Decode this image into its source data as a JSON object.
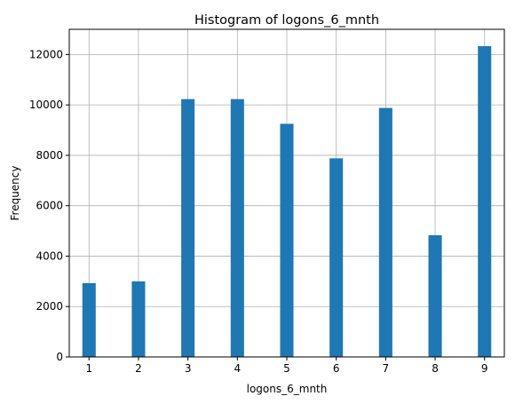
{
  "chart_data": {
    "type": "bar",
    "title": "Histogram of logons_6_mnth",
    "xlabel": "logons_6_mnth",
    "ylabel": "Frequency",
    "xlim": [
      0.6,
      9.4
    ],
    "ylim": [
      0,
      13000
    ],
    "xticks": [
      1,
      2,
      3,
      4,
      5,
      6,
      7,
      8,
      9
    ],
    "yticks": [
      0,
      2000,
      4000,
      6000,
      8000,
      10000,
      12000
    ],
    "grid": true,
    "bar_color": "#1f77b4",
    "bins": [
      {
        "x": 1,
        "frequency": 2930
      },
      {
        "x": 2,
        "frequency": 3000
      },
      {
        "x": 3,
        "frequency": 10230
      },
      {
        "x": 4,
        "frequency": 10230
      },
      {
        "x": 5,
        "frequency": 9250
      },
      {
        "x": 6,
        "frequency": 7880
      },
      {
        "x": 7,
        "frequency": 9880
      },
      {
        "x": 8,
        "frequency": 4830
      },
      {
        "x": 9,
        "frequency": 12330
      }
    ]
  }
}
